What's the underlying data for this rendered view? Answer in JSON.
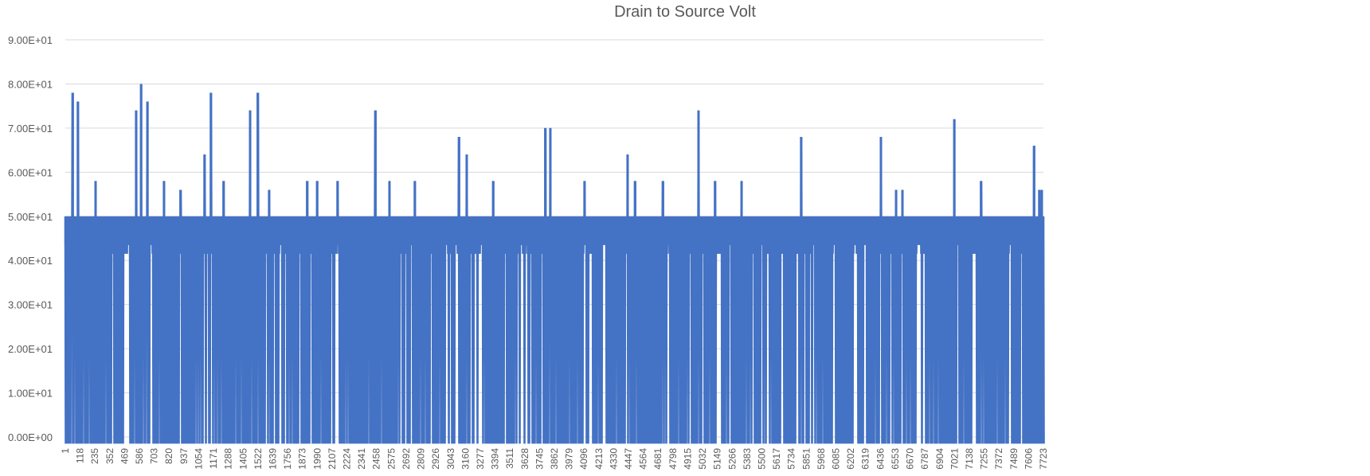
{
  "chart_data": {
    "type": "line",
    "title": "Drain to Source Volt",
    "xlabel": "",
    "ylabel": "",
    "ylim": [
      0,
      90
    ],
    "y_ticks": [
      "0.00E+00",
      "1.00E+01",
      "2.00E+01",
      "3.00E+01",
      "4.00E+01",
      "5.00E+01",
      "6.00E+01",
      "7.00E+01",
      "8.00E+01",
      "9.00E+01"
    ],
    "x_tick_labels": [
      "1",
      "118",
      "235",
      "352",
      "469",
      "586",
      "703",
      "820",
      "937",
      "1054",
      "1171",
      "1288",
      "1405",
      "1522",
      "1639",
      "1756",
      "1873",
      "1990",
      "2107",
      "2224",
      "2341",
      "2458",
      "2575",
      "2692",
      "2809",
      "2926",
      "3043",
      "3160",
      "3277",
      "3394",
      "3511",
      "3628",
      "3745",
      "3862",
      "3979",
      "4096",
      "4213",
      "4330",
      "4447",
      "4564",
      "4681",
      "4798",
      "4915",
      "5032",
      "5149",
      "5266",
      "5383",
      "5500",
      "5617",
      "5734",
      "5851",
      "5968",
      "6085",
      "6202",
      "6319",
      "6436",
      "6553",
      "6670",
      "6787",
      "6904",
      "7021",
      "7138",
      "7255",
      "7372",
      "7489",
      "7606",
      "7723"
    ],
    "x_range": [
      1,
      7723
    ],
    "baseline_high": 50.0,
    "baseline_mid": 43.5,
    "baseline_low": -1.5,
    "spikes": [
      {
        "x": 60,
        "y": 78
      },
      {
        "x": 100,
        "y": 76
      },
      {
        "x": 240,
        "y": 58
      },
      {
        "x": 560,
        "y": 74
      },
      {
        "x": 600,
        "y": 80
      },
      {
        "x": 650,
        "y": 76
      },
      {
        "x": 780,
        "y": 58
      },
      {
        "x": 910,
        "y": 56
      },
      {
        "x": 1100,
        "y": 64
      },
      {
        "x": 1150,
        "y": 78
      },
      {
        "x": 1250,
        "y": 58
      },
      {
        "x": 1460,
        "y": 74
      },
      {
        "x": 1520,
        "y": 78
      },
      {
        "x": 1610,
        "y": 56
      },
      {
        "x": 1910,
        "y": 58
      },
      {
        "x": 1990,
        "y": 58
      },
      {
        "x": 2150,
        "y": 58
      },
      {
        "x": 2450,
        "y": 74
      },
      {
        "x": 2560,
        "y": 58
      },
      {
        "x": 2760,
        "y": 58
      },
      {
        "x": 3110,
        "y": 68
      },
      {
        "x": 3170,
        "y": 64
      },
      {
        "x": 3380,
        "y": 58
      },
      {
        "x": 3790,
        "y": 70
      },
      {
        "x": 3830,
        "y": 70
      },
      {
        "x": 4100,
        "y": 58
      },
      {
        "x": 4440,
        "y": 64
      },
      {
        "x": 4500,
        "y": 58
      },
      {
        "x": 4720,
        "y": 58
      },
      {
        "x": 5000,
        "y": 74
      },
      {
        "x": 5130,
        "y": 58
      },
      {
        "x": 5340,
        "y": 58
      },
      {
        "x": 5810,
        "y": 68
      },
      {
        "x": 6440,
        "y": 68
      },
      {
        "x": 6560,
        "y": 56
      },
      {
        "x": 6610,
        "y": 56
      },
      {
        "x": 7020,
        "y": 72
      },
      {
        "x": 7230,
        "y": 58
      },
      {
        "x": 7650,
        "y": 66
      },
      {
        "x": 7690,
        "y": 56
      },
      {
        "x": 7710,
        "y": 56
      }
    ],
    "grid": true,
    "legend": "none",
    "series_color": "#4472C4"
  }
}
